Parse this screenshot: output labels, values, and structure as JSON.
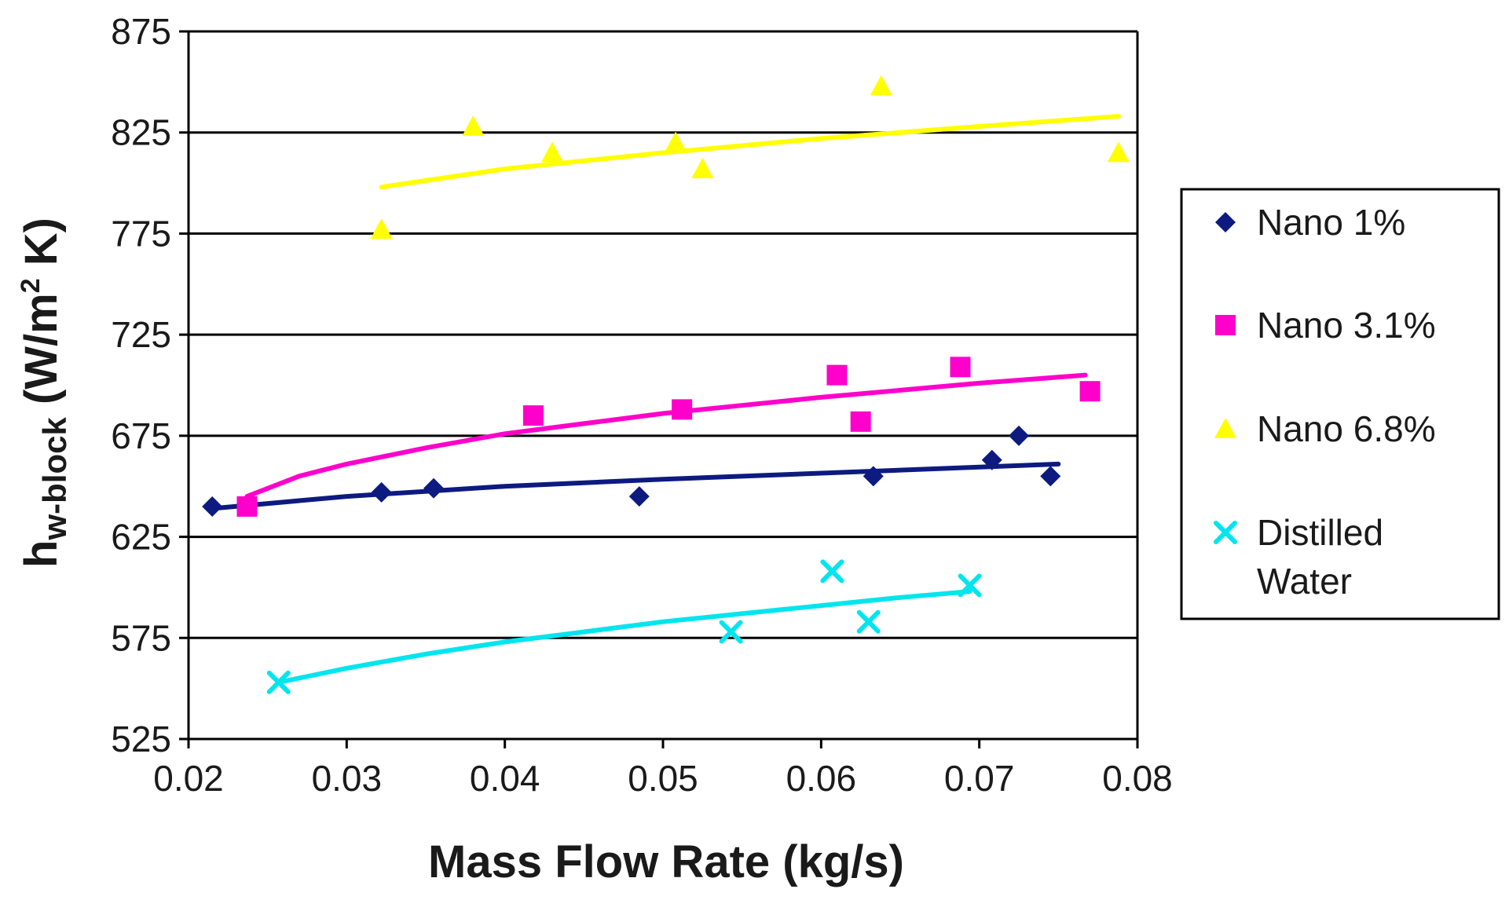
{
  "chart_data": {
    "type": "scatter",
    "title": "",
    "xlabel": "Mass Flow Rate (kg/s)",
    "ylabel": {
      "main": "h",
      "subscript": "w-block",
      "unit_prefix": " (W/m",
      "superscript": "2",
      "unit_suffix": " K)"
    },
    "xlim": [
      0.02,
      0.08
    ],
    "ylim": [
      525,
      875
    ],
    "xticks": [
      0.02,
      0.03,
      0.04,
      0.05,
      0.06,
      0.07,
      0.08
    ],
    "xtick_labels": [
      "0.02",
      "0.03",
      "0.04",
      "0.05",
      "0.06",
      "0.07",
      "0.08"
    ],
    "yticks": [
      525,
      575,
      625,
      675,
      725,
      775,
      825,
      875
    ],
    "ytick_labels": [
      "525",
      "575",
      "625",
      "675",
      "725",
      "775",
      "825",
      "875"
    ],
    "grid": "horizontal",
    "legend_position": "right",
    "series": [
      {
        "name": "Nano 1%",
        "legend_lines": [
          "Nano 1%"
        ],
        "marker": "diamond",
        "color": "#0d1a80",
        "points": [
          [
            0.0215,
            640
          ],
          [
            0.0322,
            647
          ],
          [
            0.0355,
            649
          ],
          [
            0.0485,
            645
          ],
          [
            0.0633,
            655
          ],
          [
            0.0708,
            663
          ],
          [
            0.0725,
            675
          ],
          [
            0.0745,
            655
          ]
        ],
        "trend": [
          [
            0.0215,
            639
          ],
          [
            0.03,
            645
          ],
          [
            0.04,
            650
          ],
          [
            0.05,
            653.5
          ],
          [
            0.06,
            656.5
          ],
          [
            0.07,
            659.5
          ],
          [
            0.075,
            661
          ]
        ]
      },
      {
        "name": "Nano 3.1%",
        "legend_lines": [
          "Nano 3.1%"
        ],
        "marker": "square",
        "color": "#ff00cc",
        "points": [
          [
            0.0237,
            640
          ],
          [
            0.0418,
            685
          ],
          [
            0.0512,
            688
          ],
          [
            0.061,
            705
          ],
          [
            0.0625,
            682
          ],
          [
            0.0688,
            709
          ],
          [
            0.077,
            697
          ]
        ],
        "trend": [
          [
            0.0237,
            645
          ],
          [
            0.027,
            655
          ],
          [
            0.03,
            661
          ],
          [
            0.035,
            669
          ],
          [
            0.04,
            676
          ],
          [
            0.045,
            681
          ],
          [
            0.05,
            686
          ],
          [
            0.055,
            690
          ],
          [
            0.06,
            694
          ],
          [
            0.065,
            697.5
          ],
          [
            0.07,
            701
          ],
          [
            0.0767,
            705
          ]
        ]
      },
      {
        "name": "Nano 6.8%",
        "legend_lines": [
          "Nano 6.8%"
        ],
        "marker": "triangle",
        "color": "#ffff00",
        "points": [
          [
            0.0322,
            777
          ],
          [
            0.038,
            828
          ],
          [
            0.043,
            815
          ],
          [
            0.0508,
            820
          ],
          [
            0.0525,
            807
          ],
          [
            0.0638,
            848
          ],
          [
            0.0788,
            815
          ]
        ],
        "trend": [
          [
            0.0322,
            798
          ],
          [
            0.04,
            807
          ],
          [
            0.05,
            815
          ],
          [
            0.06,
            822
          ],
          [
            0.07,
            828
          ],
          [
            0.0788,
            833
          ]
        ]
      },
      {
        "name": "Distilled Water",
        "legend_lines": [
          "Distilled",
          "Water"
        ],
        "marker": "x",
        "color": "#00e5ee",
        "points": [
          [
            0.0257,
            553
          ],
          [
            0.0543,
            578
          ],
          [
            0.0607,
            608
          ],
          [
            0.063,
            583
          ],
          [
            0.0694,
            601
          ]
        ],
        "trend": [
          [
            0.0257,
            553
          ],
          [
            0.03,
            560
          ],
          [
            0.035,
            567
          ],
          [
            0.04,
            573
          ],
          [
            0.045,
            578
          ],
          [
            0.05,
            583
          ],
          [
            0.055,
            587
          ],
          [
            0.06,
            591
          ],
          [
            0.065,
            595
          ],
          [
            0.0694,
            598
          ]
        ]
      }
    ]
  }
}
